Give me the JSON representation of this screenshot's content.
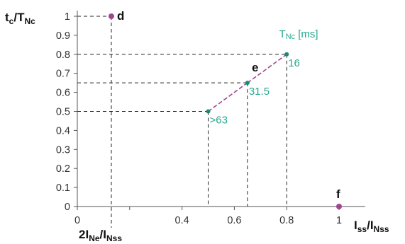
{
  "chart_data": {
    "type": "scatter",
    "y_axis": {
      "title_main": "t",
      "title_main_sub": "c",
      "title_sep": "/T",
      "title_sep_sub": "Nc",
      "ylim": [
        0,
        1
      ],
      "tick_labels": [
        "0",
        "0.1",
        "0.2",
        "0.3",
        "0.4",
        "0.5",
        "0.6",
        "0.7",
        "0.8",
        "0.9",
        "1"
      ],
      "tick_values": [
        0,
        0.1,
        0.2,
        0.3,
        0.4,
        0.5,
        0.6,
        0.7,
        0.8,
        0.9,
        1
      ]
    },
    "x_axis": {
      "title_main": "I",
      "title_main_sub": "ss",
      "title_sep": "/I",
      "title_sep_sub": "Nss",
      "xlim": [
        0,
        1
      ],
      "tick_labels": [
        "0",
        "0.4",
        "0.6",
        "0.8",
        "1"
      ],
      "tick_values": [
        0,
        0.4,
        0.6,
        0.8,
        1
      ],
      "minor_ticks": [
        0.2
      ],
      "special_tick_value": 0.13,
      "special_label_prefix": "2I",
      "special_label_prefix_sub": "Ne",
      "special_label_sep": "/I",
      "special_label_sep_sub": "Nss"
    },
    "named_points": [
      {
        "name": "d",
        "x": 0.13,
        "y": 1.0,
        "color": "#a0458f"
      },
      {
        "name": "f",
        "x": 1.0,
        "y": 0.0,
        "color": "#a0458f"
      }
    ],
    "series": [
      {
        "line_label": "e",
        "header_prefix": "T",
        "header_sub": "Nc",
        "header_unit": " [ms]",
        "color": "#27a88f",
        "line_color": "#a0458f",
        "points": [
          {
            "x": 0.5,
            "y": 0.5,
            "label": ">63"
          },
          {
            "x": 0.65,
            "y": 0.65,
            "label": "31.5"
          },
          {
            "x": 0.8,
            "y": 0.8,
            "label": "16"
          }
        ]
      }
    ],
    "grid": false
  }
}
